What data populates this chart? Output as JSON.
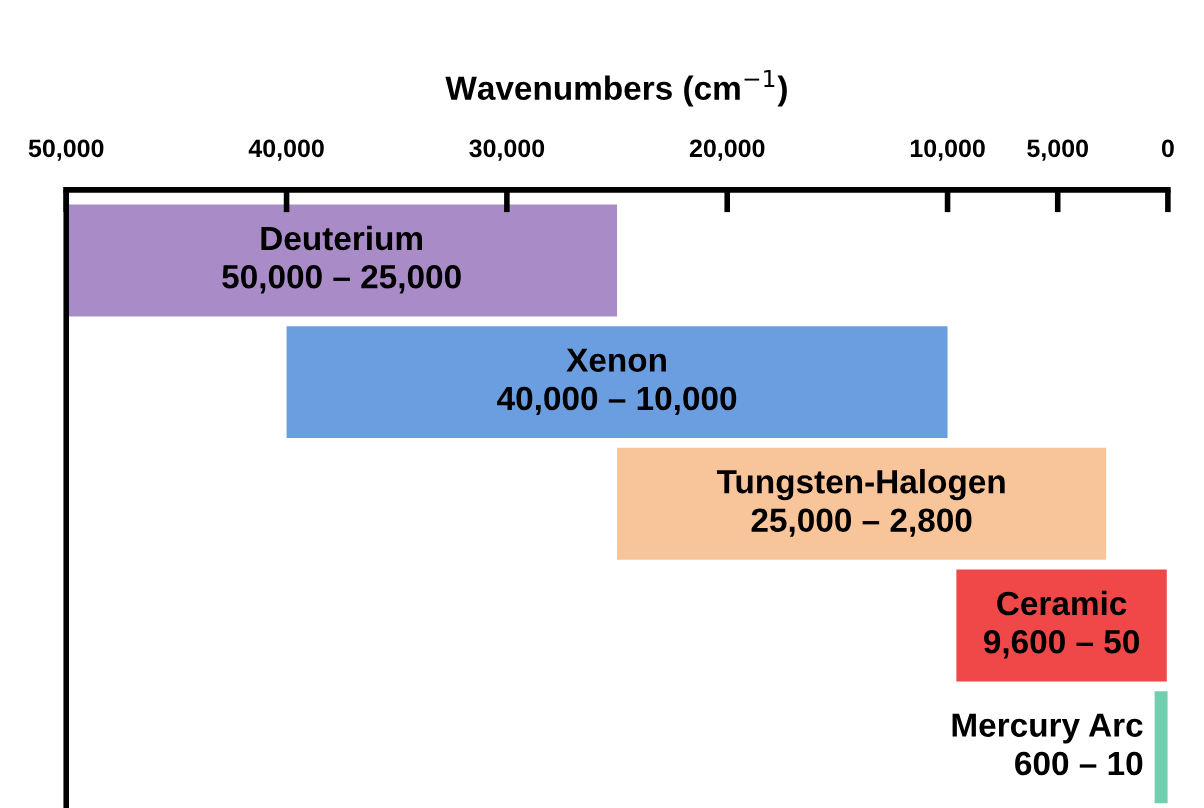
{
  "chart_data": {
    "type": "bar",
    "orientation": "horizontal",
    "xlabel": "Wavenumbers (cm$^{−1}$)",
    "categories": [
      "Deuterium",
      "Xenon",
      "Tungsten-Halogen",
      "Ceramic",
      "Mercury Arc"
    ],
    "base": [
      25000,
      10000,
      2800,
      50,
      10
    ],
    "values": [
      25000,
      30000,
      22200,
      9550,
      590
    ],
    "colors": [
      "#a98bc8",
      "#6b9ee0",
      "#f8c49a",
      "#f04848",
      "#6fcfae"
    ],
    "annotations": [
      "50,000 – 25,000",
      "40,000 – 10,000",
      "25,000 – 2,800",
      "9,600 – 50",
      "600 – 10"
    ],
    "xlim": [
      50000,
      0
    ],
    "xticks": [
      {
        "value": 50000,
        "label": "50,000"
      },
      {
        "value": 40000,
        "label": "40,000"
      },
      {
        "value": 30000,
        "label": "30,000"
      },
      {
        "value": 20000,
        "label": "20,000"
      },
      {
        "value": 10000,
        "label": "10,000"
      },
      {
        "value": 5000,
        "label": "5,000"
      },
      0
    ],
    "tick_labels": "x",
    "grid": false,
    "legend": false
  }
}
